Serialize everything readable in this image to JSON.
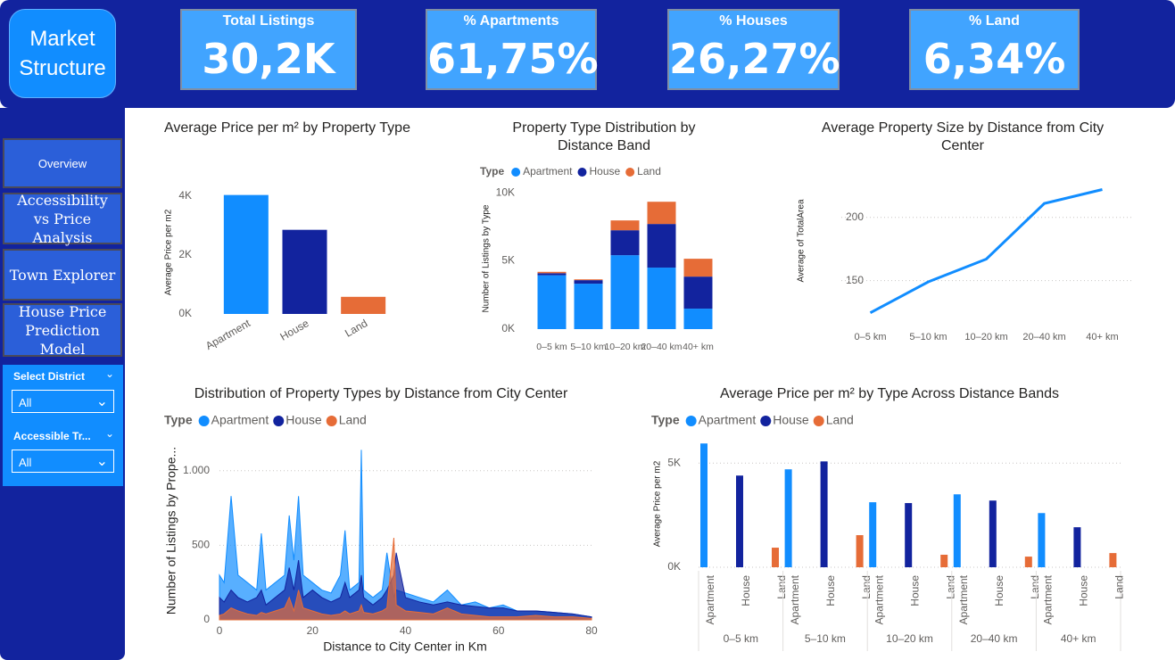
{
  "header": {
    "title": "Market Structure"
  },
  "kpis": [
    {
      "label": "Total Listings",
      "value": "30,2K"
    },
    {
      "label": "% Apartments",
      "value": "61,75%"
    },
    {
      "label": "% Houses",
      "value": "26,27%"
    },
    {
      "label": "% Land",
      "value": "6,34%"
    }
  ],
  "nav": [
    "Overview",
    "Accessibility vs Price Analysis",
    "Town Explorer",
    "House Price Prediction Model"
  ],
  "filters": [
    {
      "label": "Select District",
      "value": "All"
    },
    {
      "label": "Accessible Tr...",
      "value": "All"
    }
  ],
  "chart_data": [
    {
      "type": "bar",
      "title": "Average Price per m² by Property Type",
      "y_label": "Average Price per m2",
      "categories": [
        "Apartment",
        "House",
        "Land"
      ],
      "values": [
        4030,
        2850,
        580
      ],
      "colors": [
        "#118dff",
        "#12239e",
        "#e66c37"
      ],
      "ylim": [
        0,
        4200
      ],
      "yticks": [
        {
          "value": 0,
          "label": "0K"
        },
        {
          "value": 2000,
          "label": "2K"
        },
        {
          "value": 4000,
          "label": "4K"
        }
      ],
      "grid": false
    },
    {
      "type": "stacked_bar",
      "title": "Property Type Distribution by Distance Band",
      "y_label": "Number of Listings by Type",
      "legend_title": "Type",
      "categories": [
        "0–5 km",
        "5–10 km",
        "10–20 km",
        "20–40 km",
        "40+ km"
      ],
      "series": [
        {
          "name": "Apartment",
          "color": "#118dff",
          "values": [
            3950,
            3330,
            5420,
            4510,
            1500
          ]
        },
        {
          "name": "House",
          "color": "#12239e",
          "values": [
            150,
            260,
            1830,
            3200,
            2350
          ]
        },
        {
          "name": "Land",
          "color": "#e66c37",
          "values": [
            100,
            60,
            720,
            1630,
            1310
          ]
        }
      ],
      "ylim": [
        0,
        10400
      ],
      "yticks": [
        {
          "value": 0,
          "label": "0K"
        },
        {
          "value": 5000,
          "label": "5K"
        },
        {
          "value": 10000,
          "label": "10K"
        }
      ],
      "grid": false
    },
    {
      "type": "line",
      "title": "Average Property Size by Distance from City Center",
      "y_label": "Average of TotalArea",
      "categories": [
        "0–5 km",
        "5–10 km",
        "10–20 km",
        "20–40 km",
        "40+ km"
      ],
      "values": [
        124.6,
        149,
        167,
        211,
        222
      ],
      "color": "#118dff",
      "ylim": [
        118,
        228
      ],
      "yticks": [
        150,
        200
      ],
      "grid": true
    },
    {
      "type": "area",
      "title": "Distribution of Property Types by Distance from City Center",
      "x_label": "Distance to City Center in Km",
      "y_label": "Number of Listings by Prope...",
      "legend_title": "Type",
      "x": [
        0,
        1,
        2.5,
        4,
        6,
        8,
        9,
        10,
        12,
        14,
        15,
        16,
        17,
        18,
        20,
        22,
        24,
        26,
        27,
        28,
        30,
        30.5,
        31,
        33,
        35,
        36,
        37.5,
        38,
        40,
        43,
        46,
        49,
        52,
        55,
        58,
        61,
        64,
        68,
        72,
        76,
        80
      ],
      "series": [
        {
          "name": "Apartment",
          "color": "#118dff",
          "values": [
            300,
            250,
            830,
            300,
            250,
            200,
            580,
            200,
            250,
            300,
            700,
            400,
            830,
            300,
            250,
            200,
            180,
            300,
            600,
            200,
            250,
            1140,
            200,
            150,
            200,
            450,
            150,
            200,
            180,
            150,
            120,
            200,
            100,
            120,
            80,
            100,
            60,
            60,
            50,
            40,
            20
          ]
        },
        {
          "name": "House",
          "color": "#12239e",
          "values": [
            150,
            120,
            200,
            150,
            120,
            150,
            200,
            100,
            150,
            200,
            350,
            200,
            400,
            150,
            200,
            150,
            120,
            150,
            250,
            150,
            200,
            300,
            150,
            100,
            150,
            200,
            300,
            450,
            150,
            120,
            100,
            120,
            100,
            90,
            80,
            80,
            60,
            60,
            50,
            40,
            20
          ]
        },
        {
          "name": "Land",
          "color": "#e66c37",
          "values": [
            30,
            40,
            80,
            60,
            40,
            30,
            50,
            40,
            60,
            80,
            150,
            60,
            200,
            80,
            60,
            40,
            30,
            40,
            60,
            40,
            60,
            100,
            50,
            40,
            60,
            80,
            550,
            100,
            60,
            50,
            40,
            80,
            40,
            30,
            20,
            20,
            20,
            30,
            20,
            20,
            10
          ]
        }
      ],
      "xlim": [
        0,
        80
      ],
      "xticks": [
        0,
        20,
        40,
        60,
        80
      ],
      "ylim": [
        0,
        1250
      ],
      "yticks": [
        0,
        500,
        {
          "value": 1000,
          "label": "1.000"
        }
      ],
      "grid": true
    },
    {
      "type": "grouped_bar",
      "title": "Average Price per m² by Type Across Distance Bands",
      "y_label": "Average Price per m2",
      "legend_title": "Type",
      "categories": [
        "0–5 km",
        "5–10 km",
        "10–20 km",
        "20–40 km",
        "40+ km"
      ],
      "series": [
        {
          "name": "Apartment",
          "color": "#118dff",
          "values": [
            5940,
            4700,
            3120,
            3500,
            2600
          ]
        },
        {
          "name": "House",
          "color": "#12239e",
          "values": [
            4400,
            5080,
            3080,
            3200,
            1920
          ]
        },
        {
          "name": "Land",
          "color": "#e66c37",
          "values": [
            940,
            1540,
            600,
            510,
            680
          ]
        }
      ],
      "ylim": [
        0,
        6250
      ],
      "yticks": [
        {
          "value": 0,
          "label": "0K"
        },
        {
          "value": 5000,
          "label": "5K"
        }
      ],
      "grid": true
    }
  ]
}
